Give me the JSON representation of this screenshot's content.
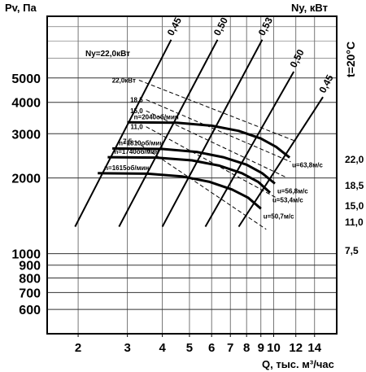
{
  "chart_data": {
    "type": "line",
    "title": "",
    "y_label_left": "Pv, Па",
    "y_label_right": "Ny, кВт",
    "x_label": "Q, тыс. м³/час",
    "temperature": "t=20°C",
    "x_scale": "log",
    "y_scale": "log",
    "xlim": [
      1.55,
      16.8
    ],
    "ylim": [
      480,
      8800
    ],
    "x_ticks": [
      2,
      3,
      4,
      5,
      6,
      7,
      8,
      9,
      10,
      12,
      14
    ],
    "x_tick_labels": [
      "2",
      "3",
      "4",
      "5",
      "6",
      "7",
      "8",
      "9",
      "10",
      "12",
      "14"
    ],
    "y_ticks_left": [
      600,
      700,
      800,
      900,
      1000,
      2000,
      3000,
      4000,
      5000
    ],
    "y_tick_labels_left": [
      "600",
      "700",
      "800",
      "900",
      "1000",
      "2000",
      "3000",
      "4000",
      "5000"
    ],
    "grid": true,
    "pressure_curves": [
      {
        "name": "n=2040об/мин",
        "x": [
          3.0,
          4.5,
          6.0,
          7.5,
          9.0,
          10.2,
          11.4
        ],
        "y": [
          3330,
          3320,
          3230,
          3080,
          2870,
          2660,
          2410
        ]
      },
      {
        "name": "n=1810об/мин",
        "x": [
          2.65,
          4.0,
          5.3,
          6.6,
          8.0,
          9.1,
          10.1
        ],
        "y": [
          2620,
          2610,
          2540,
          2420,
          2260,
          2090,
          1900
        ]
      },
      {
        "name": "n=1740об/мин",
        "x": [
          2.55,
          3.8,
          5.1,
          6.4,
          7.7,
          8.8,
          9.7
        ],
        "y": [
          2420,
          2410,
          2350,
          2240,
          2090,
          1930,
          1750
        ]
      },
      {
        "name": "n=1615об/мин",
        "x": [
          2.35,
          3.55,
          4.7,
          5.9,
          7.1,
          8.1,
          9.0
        ],
        "y": [
          2090,
          2080,
          2030,
          1930,
          1800,
          1670,
          1510
        ]
      }
    ],
    "curve_end_labels": [
      "u=63,8м/с",
      "u=56,8м/с",
      "u=53,4м/с",
      "u=50,7м/с"
    ],
    "efficiency_lines": [
      {
        "label": "0,45",
        "points": [
          [
            1.95,
            1280
          ],
          [
            4.3,
            7100
          ]
        ]
      },
      {
        "label": "0,50",
        "points": [
          [
            2.8,
            1280
          ],
          [
            6.3,
            7100
          ]
        ]
      },
      {
        "label": "0,53",
        "points": [
          [
            4.0,
            1280
          ],
          [
            9.1,
            7100
          ]
        ]
      },
      {
        "label": "0,50",
        "points": [
          [
            5.7,
            1280
          ],
          [
            11.8,
            5300
          ]
        ]
      },
      {
        "label": "0,45",
        "points": [
          [
            7.5,
            1280
          ],
          [
            15.0,
            4200
          ]
        ]
      }
    ],
    "power_lines": [
      {
        "label": "22,0",
        "left_label": "22,0кВт",
        "points": [
          [
            3.3,
            4900
          ],
          [
            12.0,
            2800
          ]
        ]
      },
      {
        "label": "18,5",
        "left_label": "18,5",
        "points": [
          [
            3.5,
            4100
          ],
          [
            11.5,
            2320
          ]
        ]
      },
      {
        "label": "15,0",
        "left_label": "15,0",
        "points": [
          [
            3.5,
            3700
          ],
          [
            11.0,
            2020
          ]
        ]
      },
      {
        "label": "11,0",
        "left_label": "11,0",
        "points": [
          [
            3.5,
            3200
          ],
          [
            10.4,
            1650
          ]
        ]
      },
      {
        "label": "7,5",
        "left_label": "7,5",
        "points": [
          [
            3.2,
            2800
          ],
          [
            9.4,
            1250
          ]
        ]
      }
    ],
    "ny_header": "Ny=22,0кВт"
  }
}
